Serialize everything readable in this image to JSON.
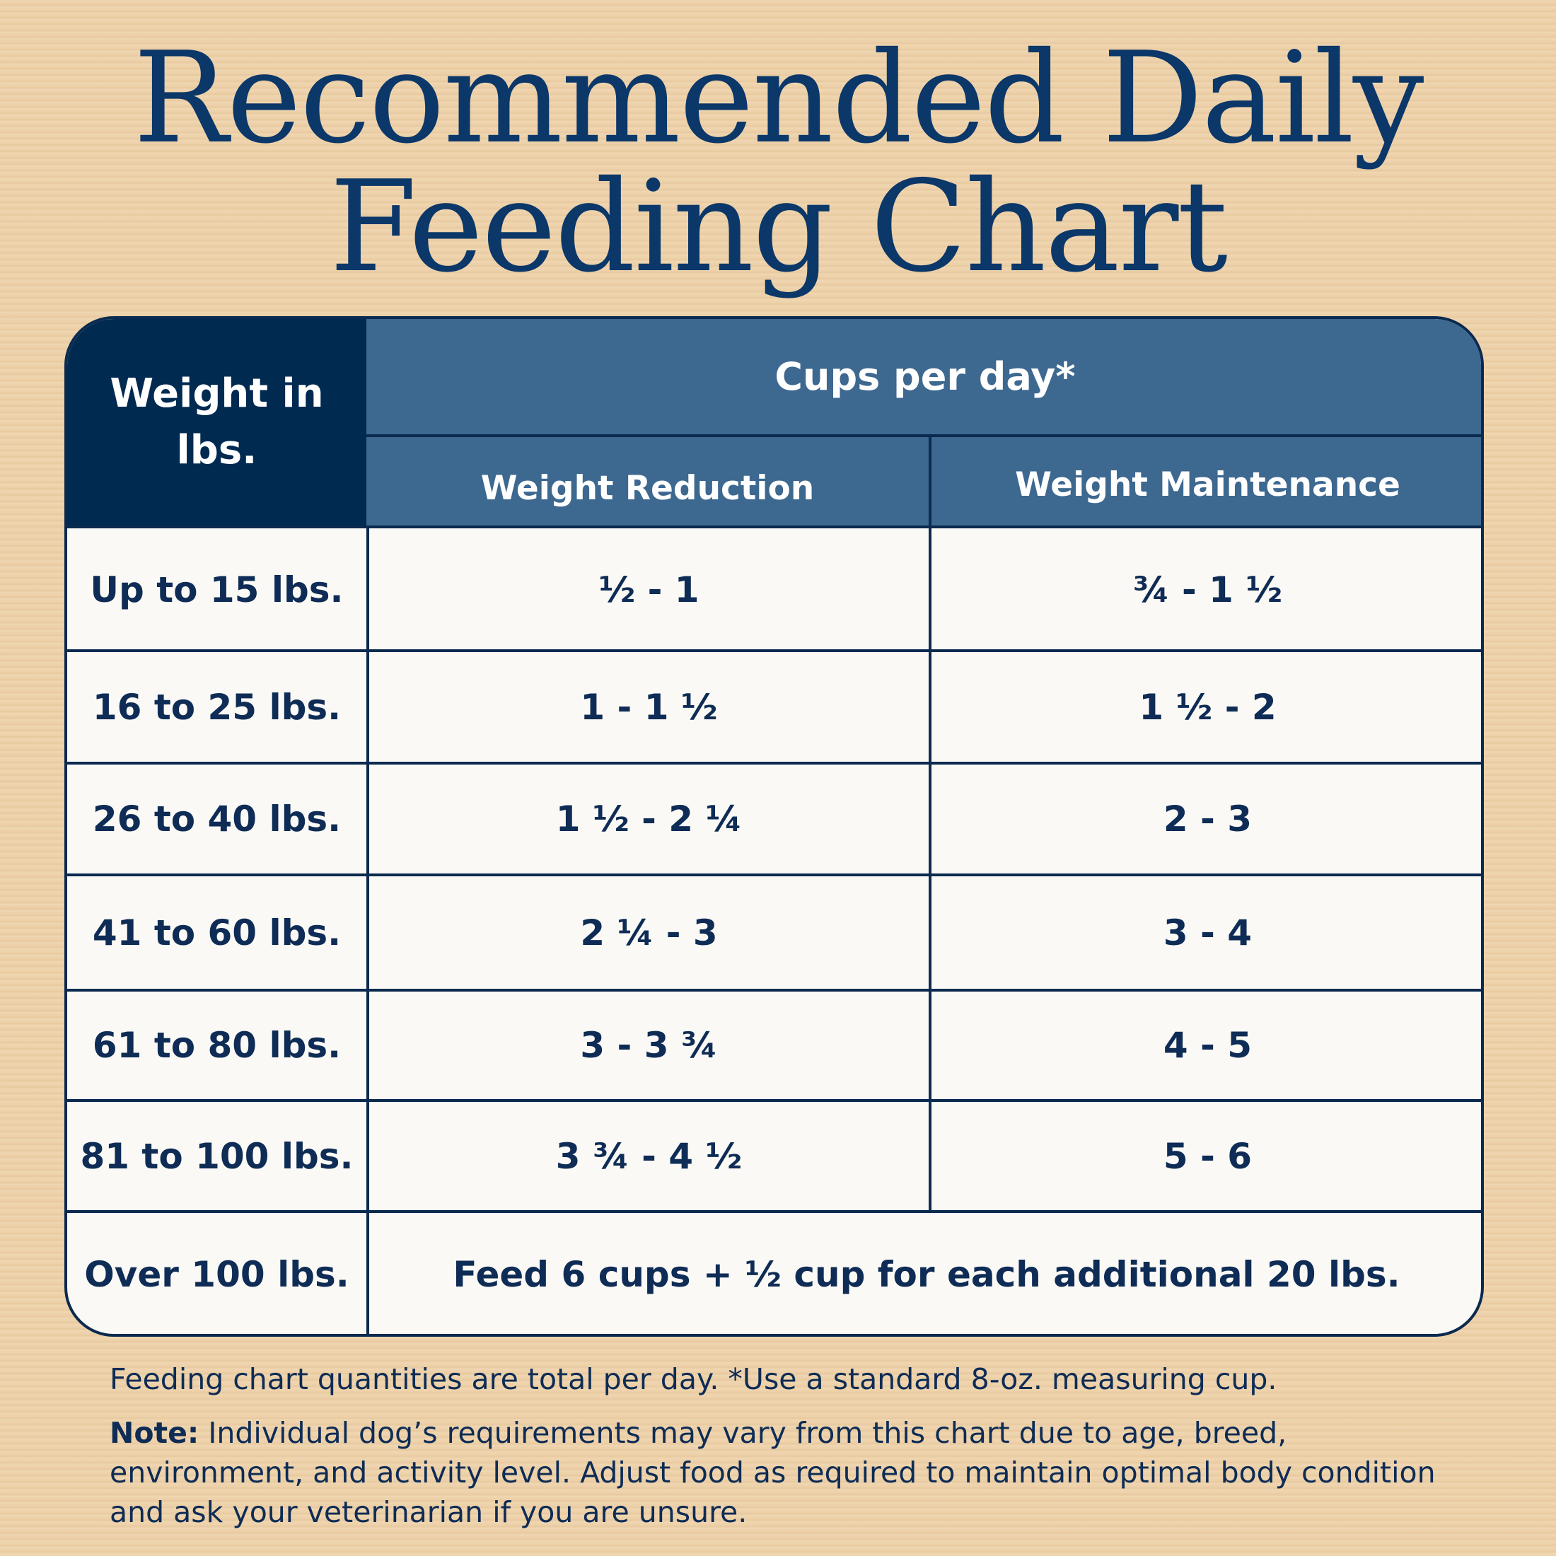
{
  "title": {
    "line1": "Recommended Daily",
    "line2": "Feeding Chart"
  },
  "table": {
    "weight_header": "Weight in lbs.",
    "cups_header": "Cups per day*",
    "col_reduction": "Weight Reduction",
    "col_maintenance": "Weight Maintenance",
    "rows": [
      {
        "weight": "Up to 15 lbs.",
        "reduction": "½ - 1",
        "maintenance": "¾ - 1 ½"
      },
      {
        "weight": "16 to 25 lbs.",
        "reduction": "1 - 1 ½",
        "maintenance": "1 ½ - 2"
      },
      {
        "weight": "26 to 40 lbs.",
        "reduction": "1 ½ - 2 ¼",
        "maintenance": "2 - 3"
      },
      {
        "weight": "41 to 60 lbs.",
        "reduction": "2 ¼ - 3",
        "maintenance": "3 - 4"
      },
      {
        "weight": "61 to 80 lbs.",
        "reduction": "3 - 3 ¾",
        "maintenance": "4 - 5"
      },
      {
        "weight": "81 to 100 lbs.",
        "reduction": "3 ¾ - 4 ½",
        "maintenance": "5 - 6"
      }
    ],
    "last_row": {
      "weight": "Over 100 lbs.",
      "text": "Feed 6 cups + ½ cup for each additional 20 lbs."
    }
  },
  "footer": {
    "line1": "Feeding chart quantities are total per day. *Use a standard 8-oz. measuring cup.",
    "note_label": "Note:",
    "note_text": " Individual dog’s requirements may vary from this chart due to age, breed, environment, and activity level. Adjust food as required to maintain optimal body condition and ask your veterinarian if you are unsure."
  },
  "colors": {
    "title": "#0b3769",
    "header_dark": "#012a51",
    "header_mid": "#3d6890",
    "cell_bg": "#fbf9f5"
  }
}
